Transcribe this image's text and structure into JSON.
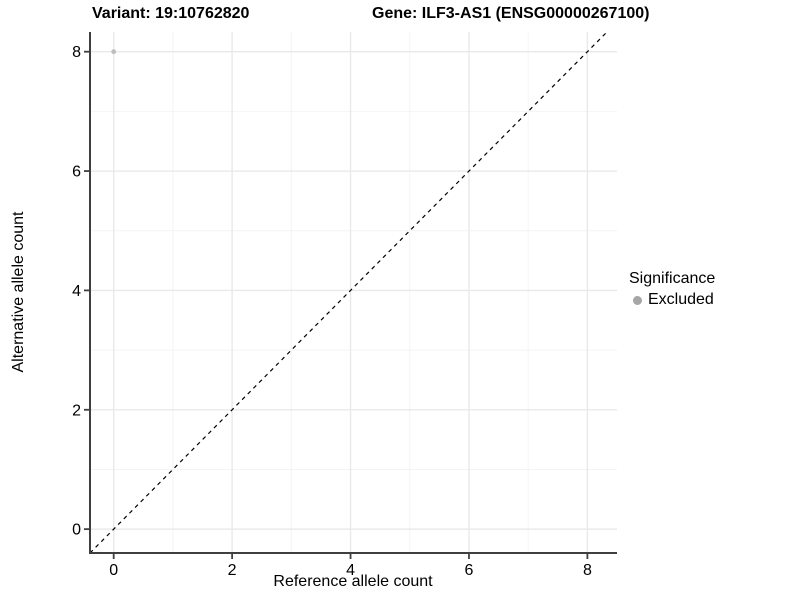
{
  "chart_data": {
    "type": "scatter",
    "titles": {
      "left": "Variant: 19:10762820",
      "right": "Gene: ILF3-AS1 (ENSG00000267100)"
    },
    "xlabel": "Reference allele count",
    "ylabel": "Alternative allele count",
    "x_ticks": [
      0,
      2,
      4,
      6,
      8
    ],
    "y_ticks": [
      0,
      2,
      4,
      6,
      8
    ],
    "x_minor_ticks": [
      1,
      3,
      5,
      7
    ],
    "y_minor_ticks": [
      1,
      3,
      5,
      7
    ],
    "xlim": [
      -0.4,
      8.5
    ],
    "ylim": [
      -0.4,
      8.33
    ],
    "grid": "major+minor",
    "reference_line": {
      "kind": "identity y=x",
      "style": "dashed",
      "color": "#000000"
    },
    "series": [
      {
        "name": "Excluded",
        "color": "#bebebe",
        "points": [
          {
            "x": 0,
            "y": 8
          }
        ]
      }
    ],
    "legend": {
      "title": "Significance",
      "position": "right",
      "entries": [
        {
          "label": "Excluded",
          "marker": "circle",
          "swatch_color": "#a6a6a6"
        }
      ]
    },
    "colors": {
      "background": "#ffffff",
      "grid_major": "#e9e9e9",
      "grid_minor": "#f4f4f4",
      "axis_line": "#3f3f3f",
      "tick_text": "#000000"
    }
  }
}
